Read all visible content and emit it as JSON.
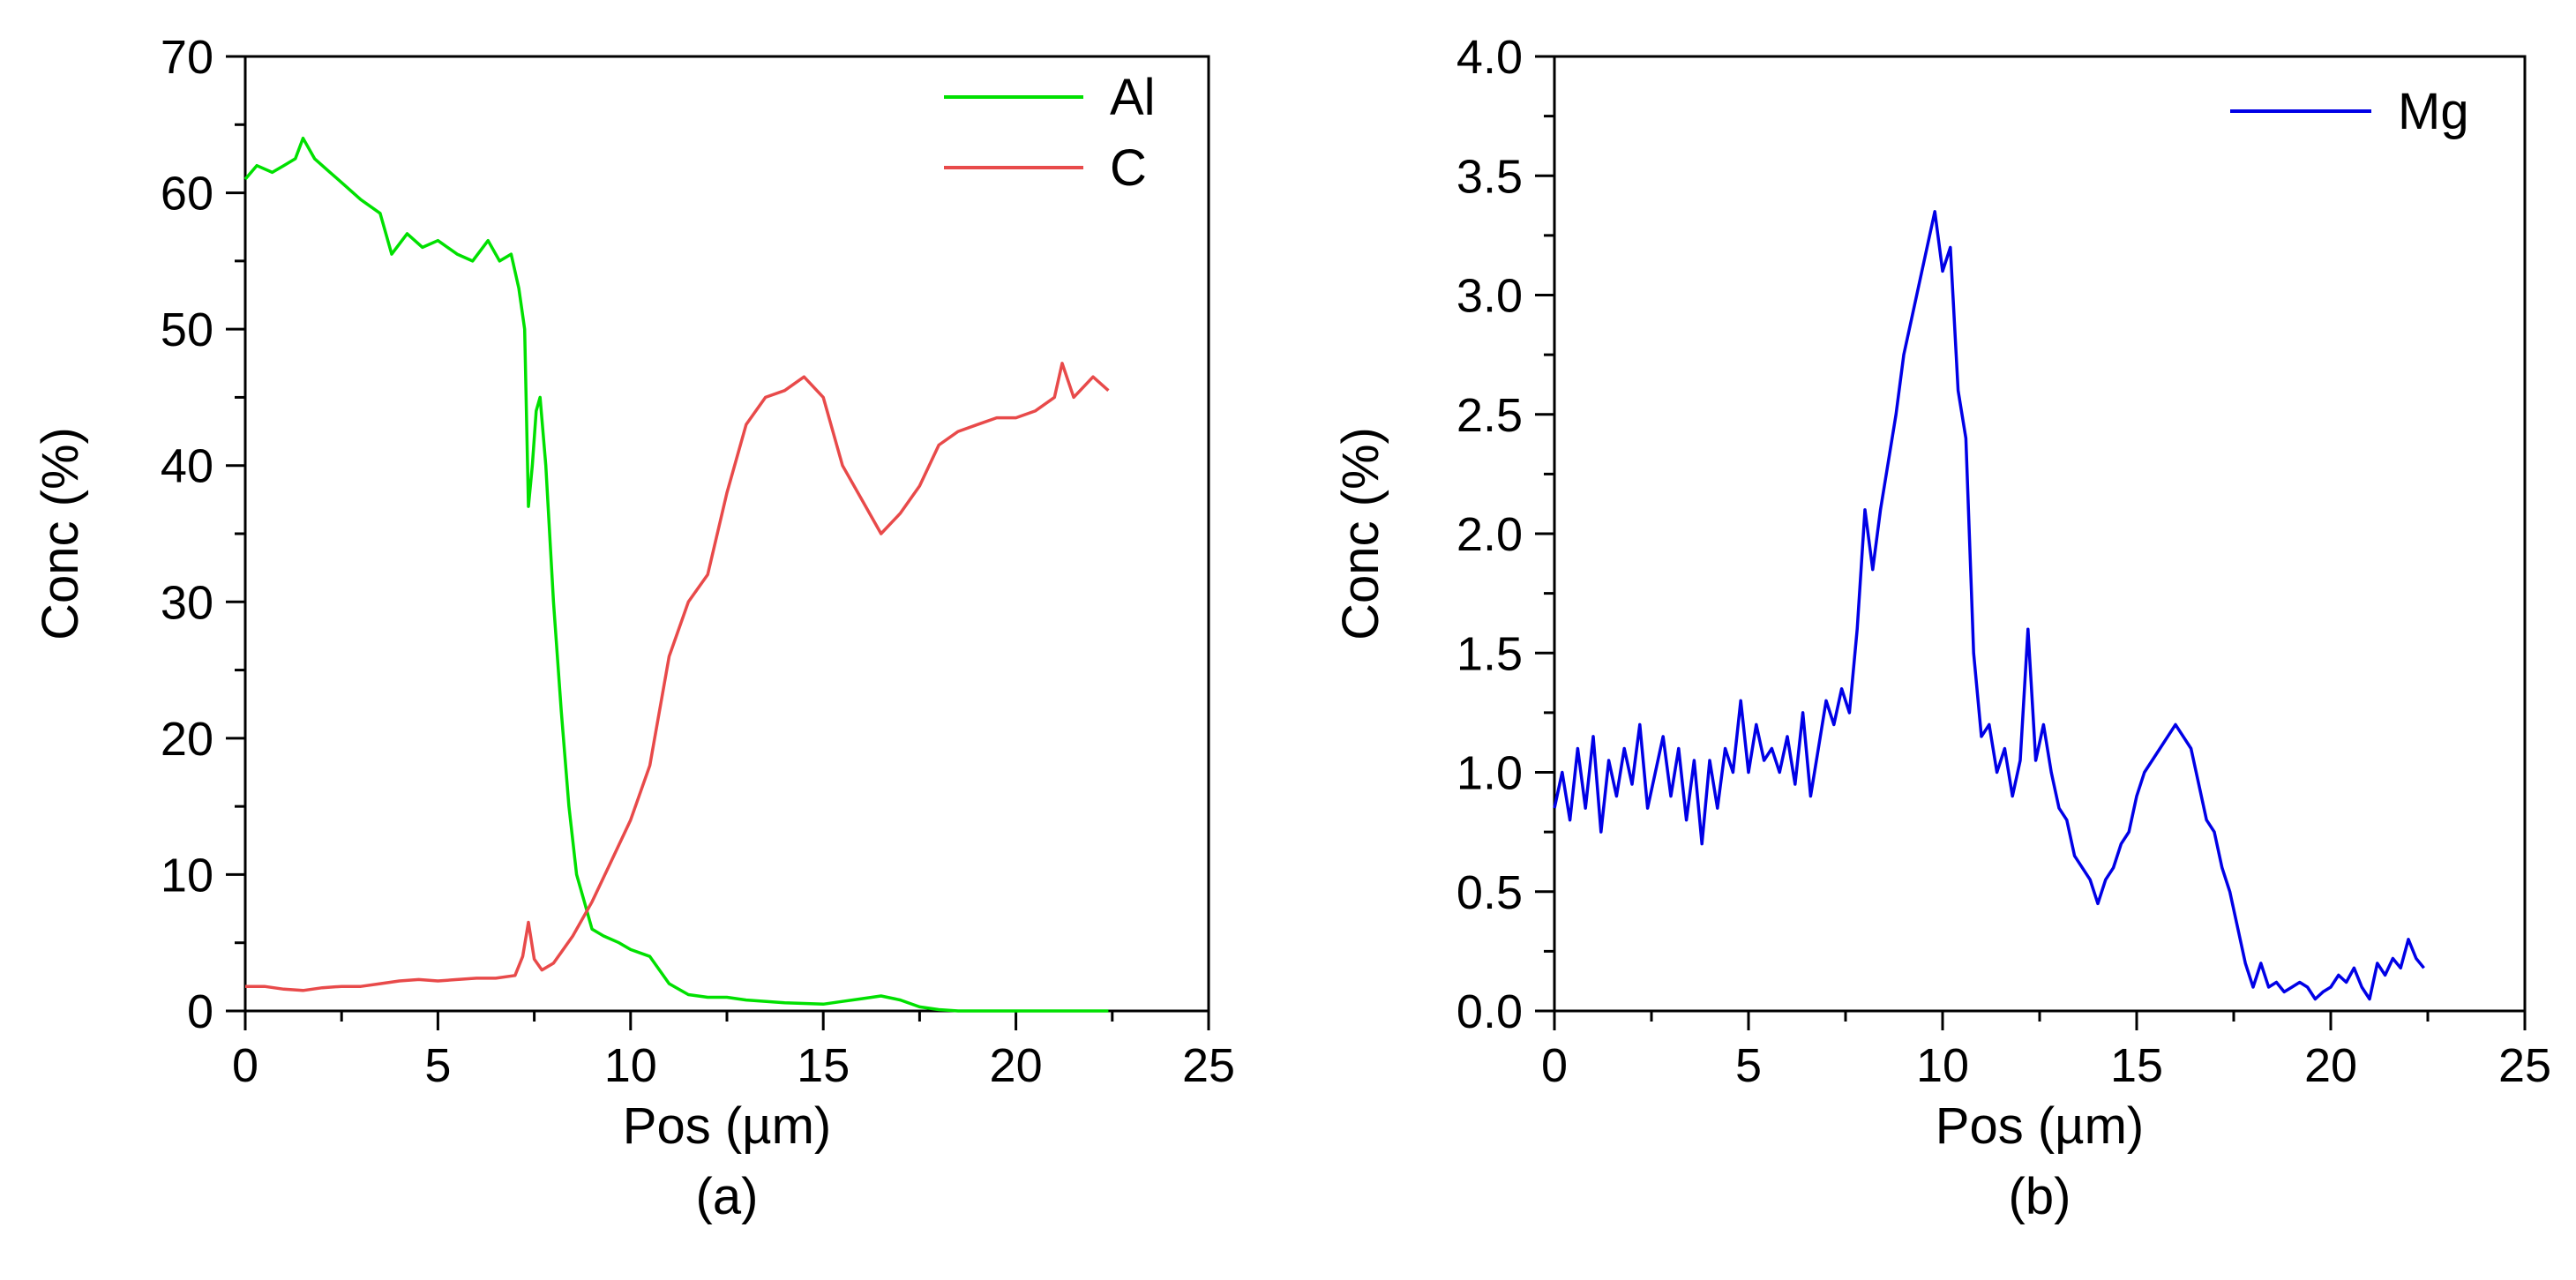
{
  "chart_data": [
    {
      "type": "line",
      "caption": "(a)",
      "xlabel": "Pos (µm)",
      "ylabel": "Conc (%)",
      "xlim": [
        0,
        25
      ],
      "ylim": [
        0,
        70
      ],
      "xticks": [
        "0",
        "5",
        "10",
        "15",
        "20",
        "25"
      ],
      "yticks": [
        "0",
        "10",
        "20",
        "30",
        "40",
        "50",
        "60",
        "70"
      ],
      "xtick_values": [
        0,
        5,
        10,
        15,
        20,
        25
      ],
      "ytick_values": [
        0,
        10,
        20,
        30,
        40,
        50,
        60,
        70
      ],
      "grid": false,
      "legend_position": "top-right",
      "series": [
        {
          "name": "Al",
          "color": "#00e000",
          "x": [
            0,
            0.3,
            0.7,
            1.0,
            1.3,
            1.5,
            1.8,
            2.2,
            2.6,
            3.0,
            3.5,
            3.8,
            4.2,
            4.6,
            5.0,
            5.5,
            5.9,
            6.3,
            6.6,
            6.9,
            7.1,
            7.25,
            7.35,
            7.45,
            7.55,
            7.65,
            7.8,
            8.0,
            8.2,
            8.4,
            8.6,
            8.8,
            9.0,
            9.3,
            9.7,
            10.0,
            10.5,
            11.0,
            11.5,
            12.0,
            12.5,
            13.0,
            14.0,
            15.0,
            15.5,
            16.0,
            16.5,
            17.0,
            17.5,
            18.0,
            18.5,
            19.0,
            20.0,
            21.0,
            22.0,
            22.4
          ],
          "y": [
            61,
            62,
            61.5,
            62,
            62.5,
            64,
            62.5,
            61.5,
            60.5,
            59.5,
            58.5,
            55.5,
            57,
            56,
            56.5,
            55.5,
            55,
            56.5,
            55,
            55.5,
            53,
            50,
            37,
            40,
            44,
            45,
            40,
            30,
            22,
            15,
            10,
            8,
            6,
            5.5,
            5,
            4.5,
            4,
            2,
            1.2,
            1,
            1,
            0.8,
            0.6,
            0.5,
            0.7,
            0.9,
            1.1,
            0.8,
            0.3,
            0.1,
            0,
            0,
            0,
            0,
            0,
            0
          ]
        },
        {
          "name": "C",
          "color": "#e84a4a",
          "x": [
            0,
            0.5,
            1.0,
            1.5,
            2.0,
            2.5,
            3.0,
            3.5,
            4.0,
            4.5,
            5.0,
            5.5,
            6.0,
            6.5,
            7.0,
            7.2,
            7.35,
            7.5,
            7.7,
            8.0,
            8.5,
            9.0,
            9.5,
            10.0,
            10.5,
            11.0,
            11.5,
            12.0,
            12.5,
            13.0,
            13.5,
            14.0,
            14.5,
            15.0,
            15.5,
            16.0,
            16.5,
            17.0,
            17.5,
            18.0,
            18.5,
            19.0,
            19.5,
            20.0,
            20.5,
            21.0,
            21.2,
            21.5,
            22.0,
            22.4
          ],
          "y": [
            1.8,
            1.8,
            1.6,
            1.5,
            1.7,
            1.8,
            1.8,
            2.0,
            2.2,
            2.3,
            2.2,
            2.3,
            2.4,
            2.4,
            2.6,
            4,
            6.5,
            3.8,
            3.0,
            3.5,
            5.5,
            8,
            11,
            14,
            18,
            26,
            30,
            32,
            38,
            43,
            45,
            45.5,
            46.5,
            45,
            40,
            37.5,
            35,
            36.5,
            38.5,
            41.5,
            42.5,
            43,
            43.5,
            43.5,
            44,
            45,
            47.5,
            45,
            46.5,
            45.5
          ]
        }
      ]
    },
    {
      "type": "line",
      "caption": "(b)",
      "xlabel": "Pos (µm)",
      "ylabel": "Conc (%)",
      "xlim": [
        0,
        25
      ],
      "ylim": [
        0,
        4.0
      ],
      "xticks": [
        "0",
        "5",
        "10",
        "15",
        "20",
        "25"
      ],
      "yticks": [
        "0.0",
        "0.5",
        "1.0",
        "1.5",
        "2.0",
        "2.5",
        "3.0",
        "3.5",
        "4.0"
      ],
      "xtick_values": [
        0,
        5,
        10,
        15,
        20,
        25
      ],
      "ytick_values": [
        0,
        0.5,
        1.0,
        1.5,
        2.0,
        2.5,
        3.0,
        3.5,
        4.0
      ],
      "grid": false,
      "legend_position": "top-right",
      "series": [
        {
          "name": "Mg",
          "color": "#0000e6",
          "x": [
            0,
            0.2,
            0.4,
            0.6,
            0.8,
            1.0,
            1.2,
            1.4,
            1.6,
            1.8,
            2.0,
            2.2,
            2.4,
            2.6,
            2.8,
            3.0,
            3.2,
            3.4,
            3.6,
            3.8,
            4.0,
            4.2,
            4.4,
            4.6,
            4.8,
            5.0,
            5.2,
            5.4,
            5.6,
            5.8,
            6.0,
            6.2,
            6.4,
            6.6,
            6.8,
            7.0,
            7.2,
            7.4,
            7.6,
            7.8,
            8.0,
            8.2,
            8.4,
            8.6,
            8.8,
            9.0,
            9.2,
            9.4,
            9.6,
            9.8,
            10.0,
            10.2,
            10.4,
            10.6,
            10.8,
            11.0,
            11.2,
            11.4,
            11.6,
            11.8,
            12.0,
            12.2,
            12.4,
            12.6,
            12.8,
            13.0,
            13.2,
            13.4,
            13.6,
            13.8,
            14.0,
            14.2,
            14.4,
            14.6,
            14.8,
            15.0,
            15.2,
            15.4,
            15.6,
            15.8,
            16.0,
            16.2,
            16.4,
            16.6,
            16.8,
            17.0,
            17.2,
            17.4,
            17.6,
            17.8,
            18.0,
            18.2,
            18.4,
            18.6,
            18.8,
            19.0,
            19.2,
            19.4,
            19.6,
            19.8,
            20.0,
            20.2,
            20.4,
            20.6,
            20.8,
            21.0,
            21.2,
            21.4,
            21.6,
            21.8,
            22.0,
            22.2,
            22.4
          ],
          "y": [
            0.85,
            1.0,
            0.8,
            1.1,
            0.85,
            1.15,
            0.75,
            1.05,
            0.9,
            1.1,
            0.95,
            1.2,
            0.85,
            1.0,
            1.15,
            0.9,
            1.1,
            0.8,
            1.05,
            0.7,
            1.05,
            0.85,
            1.1,
            1.0,
            1.3,
            1.0,
            1.2,
            1.05,
            1.1,
            1.0,
            1.15,
            0.95,
            1.25,
            0.9,
            1.1,
            1.3,
            1.2,
            1.35,
            1.25,
            1.6,
            2.1,
            1.85,
            2.1,
            2.3,
            2.5,
            2.75,
            2.9,
            3.05,
            3.2,
            3.35,
            3.1,
            3.2,
            2.6,
            2.4,
            1.5,
            1.15,
            1.2,
            1.0,
            1.1,
            0.9,
            1.05,
            1.6,
            1.05,
            1.2,
            1.0,
            0.85,
            0.8,
            0.65,
            0.6,
            0.55,
            0.45,
            0.55,
            0.6,
            0.7,
            0.75,
            0.9,
            1.0,
            1.05,
            1.1,
            1.15,
            1.2,
            1.15,
            1.1,
            0.95,
            0.8,
            0.75,
            0.6,
            0.5,
            0.35,
            0.2,
            0.1,
            0.2,
            0.1,
            0.12,
            0.08,
            0.1,
            0.12,
            0.1,
            0.05,
            0.08,
            0.1,
            0.15,
            0.12,
            0.18,
            0.1,
            0.05,
            0.2,
            0.15,
            0.22,
            0.18,
            0.3,
            0.22,
            0.18
          ]
        }
      ]
    }
  ]
}
